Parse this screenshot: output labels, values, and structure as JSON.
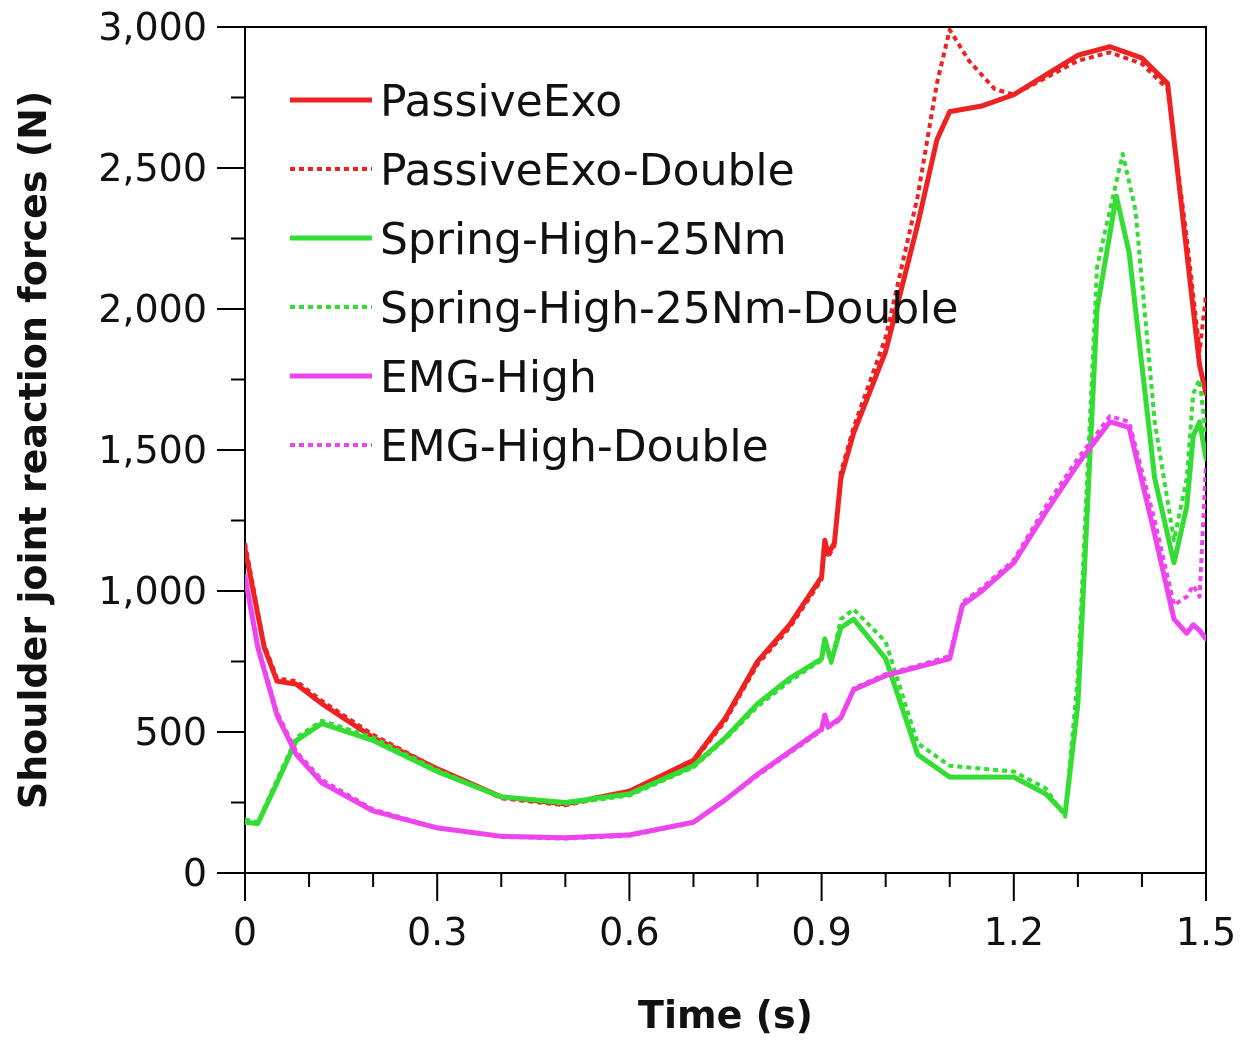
{
  "chart_data": {
    "type": "line",
    "title": "",
    "xlabel": "Time (s)",
    "ylabel": "Shoulder joint reaction forces (N)",
    "xlim": [
      0,
      1.5
    ],
    "ylim": [
      0,
      3000
    ],
    "xticks": [
      0,
      0.3,
      0.6,
      0.9,
      1.2,
      1.5
    ],
    "xtick_labels": [
      "0",
      "0.3",
      "0.6",
      "0.9",
      "1.2",
      "1.5"
    ],
    "yticks": [
      0,
      500,
      1000,
      1500,
      2000,
      2500,
      3000
    ],
    "ytick_labels": [
      "0",
      "500",
      "1,000",
      "1,500",
      "2,000",
      "2,500",
      "3,000"
    ],
    "grid": false,
    "legend_position": "top-left",
    "series": [
      {
        "name": "PassiveExo",
        "color": "#ee2222",
        "style": "solid",
        "points": [
          [
            0,
            1150
          ],
          [
            0.03,
            800
          ],
          [
            0.05,
            680
          ],
          [
            0.08,
            670
          ],
          [
            0.12,
            600
          ],
          [
            0.2,
            480
          ],
          [
            0.3,
            370
          ],
          [
            0.4,
            270
          ],
          [
            0.5,
            245
          ],
          [
            0.6,
            290
          ],
          [
            0.7,
            400
          ],
          [
            0.75,
            550
          ],
          [
            0.8,
            750
          ],
          [
            0.85,
            880
          ],
          [
            0.9,
            1050
          ],
          [
            0.905,
            1180
          ],
          [
            0.91,
            1130
          ],
          [
            0.92,
            1170
          ],
          [
            0.93,
            1400
          ],
          [
            0.95,
            1560
          ],
          [
            1.0,
            1850
          ],
          [
            1.05,
            2300
          ],
          [
            1.08,
            2600
          ],
          [
            1.1,
            2700
          ],
          [
            1.15,
            2720
          ],
          [
            1.2,
            2760
          ],
          [
            1.25,
            2830
          ],
          [
            1.3,
            2900
          ],
          [
            1.35,
            2930
          ],
          [
            1.4,
            2890
          ],
          [
            1.44,
            2800
          ],
          [
            1.47,
            2200
          ],
          [
            1.49,
            1800
          ],
          [
            1.5,
            1700
          ]
        ]
      },
      {
        "name": "PassiveExo-Double",
        "color": "#ee2222",
        "style": "dotted",
        "points": [
          [
            0,
            1170
          ],
          [
            0.03,
            810
          ],
          [
            0.05,
            690
          ],
          [
            0.08,
            680
          ],
          [
            0.12,
            610
          ],
          [
            0.2,
            490
          ],
          [
            0.3,
            370
          ],
          [
            0.4,
            265
          ],
          [
            0.5,
            240
          ],
          [
            0.6,
            285
          ],
          [
            0.7,
            395
          ],
          [
            0.75,
            540
          ],
          [
            0.8,
            740
          ],
          [
            0.85,
            870
          ],
          [
            0.9,
            1040
          ],
          [
            0.905,
            1170
          ],
          [
            0.91,
            1120
          ],
          [
            0.92,
            1160
          ],
          [
            0.93,
            1420
          ],
          [
            0.95,
            1580
          ],
          [
            1.0,
            1900
          ],
          [
            1.05,
            2400
          ],
          [
            1.08,
            2800
          ],
          [
            1.1,
            2990
          ],
          [
            1.13,
            2880
          ],
          [
            1.17,
            2780
          ],
          [
            1.2,
            2760
          ],
          [
            1.25,
            2820
          ],
          [
            1.3,
            2880
          ],
          [
            1.35,
            2910
          ],
          [
            1.4,
            2870
          ],
          [
            1.44,
            2780
          ],
          [
            1.47,
            2250
          ],
          [
            1.49,
            1850
          ],
          [
            1.5,
            2050
          ]
        ]
      },
      {
        "name": "Spring-High-25Nm",
        "color": "#33dd33",
        "style": "solid",
        "points": [
          [
            0,
            180
          ],
          [
            0.02,
            175
          ],
          [
            0.05,
            320
          ],
          [
            0.08,
            470
          ],
          [
            0.12,
            530
          ],
          [
            0.2,
            470
          ],
          [
            0.3,
            360
          ],
          [
            0.4,
            270
          ],
          [
            0.5,
            250
          ],
          [
            0.6,
            280
          ],
          [
            0.7,
            380
          ],
          [
            0.75,
            480
          ],
          [
            0.8,
            600
          ],
          [
            0.85,
            690
          ],
          [
            0.9,
            760
          ],
          [
            0.905,
            830
          ],
          [
            0.915,
            750
          ],
          [
            0.93,
            870
          ],
          [
            0.95,
            900
          ],
          [
            1.0,
            760
          ],
          [
            1.05,
            420
          ],
          [
            1.1,
            340
          ],
          [
            1.2,
            340
          ],
          [
            1.25,
            280
          ],
          [
            1.28,
            210
          ],
          [
            1.3,
            600
          ],
          [
            1.33,
            2000
          ],
          [
            1.36,
            2400
          ],
          [
            1.38,
            2200
          ],
          [
            1.42,
            1400
          ],
          [
            1.45,
            1100
          ],
          [
            1.47,
            1300
          ],
          [
            1.48,
            1550
          ],
          [
            1.49,
            1600
          ],
          [
            1.5,
            1470
          ]
        ]
      },
      {
        "name": "Spring-High-25Nm-Double",
        "color": "#33dd33",
        "style": "dotted",
        "points": [
          [
            0,
            190
          ],
          [
            0.02,
            180
          ],
          [
            0.05,
            330
          ],
          [
            0.08,
            480
          ],
          [
            0.12,
            540
          ],
          [
            0.2,
            480
          ],
          [
            0.3,
            365
          ],
          [
            0.4,
            270
          ],
          [
            0.5,
            245
          ],
          [
            0.6,
            275
          ],
          [
            0.7,
            375
          ],
          [
            0.75,
            475
          ],
          [
            0.8,
            590
          ],
          [
            0.85,
            680
          ],
          [
            0.9,
            755
          ],
          [
            0.905,
            820
          ],
          [
            0.915,
            745
          ],
          [
            0.93,
            900
          ],
          [
            0.95,
            935
          ],
          [
            1.0,
            820
          ],
          [
            1.05,
            460
          ],
          [
            1.1,
            380
          ],
          [
            1.2,
            360
          ],
          [
            1.25,
            300
          ],
          [
            1.28,
            200
          ],
          [
            1.3,
            700
          ],
          [
            1.33,
            2150
          ],
          [
            1.37,
            2550
          ],
          [
            1.39,
            2350
          ],
          [
            1.42,
            1600
          ],
          [
            1.45,
            1180
          ],
          [
            1.47,
            1400
          ],
          [
            1.48,
            1700
          ],
          [
            1.49,
            1750
          ],
          [
            1.5,
            1550
          ]
        ]
      },
      {
        "name": "EMG-High",
        "color": "#ee44ee",
        "style": "solid",
        "points": [
          [
            0,
            1050
          ],
          [
            0.02,
            800
          ],
          [
            0.05,
            560
          ],
          [
            0.08,
            420
          ],
          [
            0.12,
            320
          ],
          [
            0.2,
            220
          ],
          [
            0.3,
            160
          ],
          [
            0.4,
            130
          ],
          [
            0.5,
            125
          ],
          [
            0.6,
            135
          ],
          [
            0.7,
            180
          ],
          [
            0.75,
            260
          ],
          [
            0.8,
            350
          ],
          [
            0.85,
            430
          ],
          [
            0.9,
            510
          ],
          [
            0.905,
            560
          ],
          [
            0.91,
            520
          ],
          [
            0.93,
            550
          ],
          [
            0.95,
            650
          ],
          [
            1.0,
            700
          ],
          [
            1.05,
            730
          ],
          [
            1.1,
            760
          ],
          [
            1.12,
            950
          ],
          [
            1.15,
            1000
          ],
          [
            1.2,
            1100
          ],
          [
            1.25,
            1280
          ],
          [
            1.3,
            1450
          ],
          [
            1.35,
            1600
          ],
          [
            1.38,
            1580
          ],
          [
            1.42,
            1200
          ],
          [
            1.45,
            900
          ],
          [
            1.47,
            850
          ],
          [
            1.48,
            880
          ],
          [
            1.49,
            860
          ],
          [
            1.5,
            830
          ]
        ]
      },
      {
        "name": "EMG-High-Double",
        "color": "#ee44ee",
        "style": "dotted",
        "points": [
          [
            0,
            1060
          ],
          [
            0.02,
            810
          ],
          [
            0.05,
            570
          ],
          [
            0.08,
            430
          ],
          [
            0.12,
            330
          ],
          [
            0.2,
            225
          ],
          [
            0.3,
            160
          ],
          [
            0.4,
            128
          ],
          [
            0.5,
            122
          ],
          [
            0.6,
            132
          ],
          [
            0.7,
            178
          ],
          [
            0.75,
            258
          ],
          [
            0.8,
            345
          ],
          [
            0.85,
            425
          ],
          [
            0.9,
            505
          ],
          [
            0.905,
            555
          ],
          [
            0.91,
            515
          ],
          [
            0.93,
            545
          ],
          [
            0.95,
            655
          ],
          [
            1.0,
            705
          ],
          [
            1.05,
            735
          ],
          [
            1.1,
            770
          ],
          [
            1.12,
            960
          ],
          [
            1.15,
            1010
          ],
          [
            1.2,
            1110
          ],
          [
            1.25,
            1300
          ],
          [
            1.3,
            1470
          ],
          [
            1.35,
            1620
          ],
          [
            1.38,
            1600
          ],
          [
            1.42,
            1250
          ],
          [
            1.45,
            950
          ],
          [
            1.47,
            980
          ],
          [
            1.48,
            1020
          ],
          [
            1.49,
            980
          ],
          [
            1.5,
            1450
          ]
        ]
      }
    ]
  }
}
